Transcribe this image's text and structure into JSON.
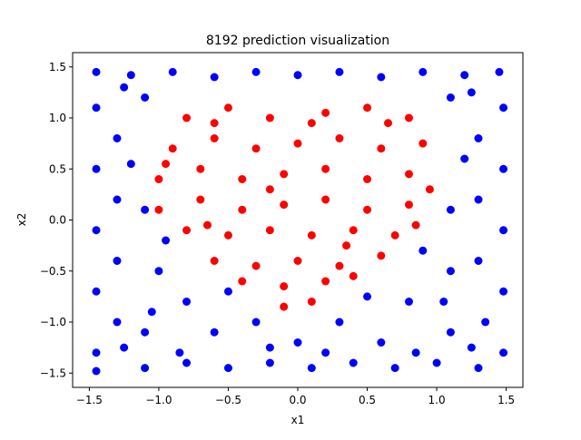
{
  "chart_data": {
    "type": "scatter",
    "title": "8192 prediction visualization",
    "xlabel": "x1",
    "ylabel": "x2",
    "xlim": [
      -1.62,
      1.62
    ],
    "ylim": [
      -1.64,
      1.64
    ],
    "xticks": [
      -1.5,
      -1.0,
      -0.5,
      0.0,
      0.5,
      1.0,
      1.5
    ],
    "xtick_labels": [
      "−1.5",
      "−1.0",
      "−0.5",
      "0.0",
      "0.5",
      "1.0",
      "1.5"
    ],
    "yticks": [
      -1.5,
      -1.0,
      -0.5,
      0.0,
      0.5,
      1.0,
      1.5
    ],
    "ytick_labels": [
      "−1.5",
      "−1.0",
      "−0.5",
      "0.0",
      "0.5",
      "1.0",
      "1.5"
    ],
    "grid": false,
    "legend": "none",
    "points_range": {
      "x": [
        -1.5,
        1.5
      ],
      "y": [
        -1.5,
        1.5
      ]
    },
    "series": [
      {
        "color": "#0000ff",
        "description_region": "outside the central cloud",
        "points": [
          [
            -1.45,
            1.45
          ],
          [
            -1.2,
            1.42
          ],
          [
            -0.9,
            1.45
          ],
          [
            -0.6,
            1.4
          ],
          [
            -0.3,
            1.45
          ],
          [
            0.0,
            1.42
          ],
          [
            0.3,
            1.45
          ],
          [
            0.6,
            1.4
          ],
          [
            0.9,
            1.45
          ],
          [
            1.2,
            1.42
          ],
          [
            1.45,
            1.45
          ],
          [
            -1.45,
            1.1
          ],
          [
            -1.3,
            0.8
          ],
          [
            -1.45,
            0.5
          ],
          [
            -1.3,
            0.2
          ],
          [
            -1.45,
            -0.1
          ],
          [
            -1.3,
            -0.4
          ],
          [
            -1.45,
            -0.7
          ],
          [
            -1.3,
            -1.0
          ],
          [
            -1.45,
            -1.3
          ],
          [
            -1.45,
            -1.48
          ],
          [
            -1.1,
            -1.45
          ],
          [
            -0.8,
            -1.4
          ],
          [
            -0.5,
            -1.45
          ],
          [
            -0.2,
            -1.4
          ],
          [
            0.1,
            -1.45
          ],
          [
            0.4,
            -1.4
          ],
          [
            0.7,
            -1.45
          ],
          [
            1.0,
            -1.4
          ],
          [
            1.3,
            -1.45
          ],
          [
            1.48,
            -1.3
          ],
          [
            1.35,
            -1.0
          ],
          [
            1.48,
            -0.7
          ],
          [
            1.3,
            -0.4
          ],
          [
            1.48,
            -0.1
          ],
          [
            1.3,
            0.2
          ],
          [
            1.48,
            0.5
          ],
          [
            1.3,
            0.8
          ],
          [
            1.48,
            1.1
          ],
          [
            1.1,
            1.2
          ],
          [
            -1.1,
            1.2
          ],
          [
            -1.1,
            -1.1
          ],
          [
            1.1,
            -1.1
          ],
          [
            -0.8,
            -0.8
          ],
          [
            0.8,
            -0.8
          ],
          [
            -1.0,
            -0.5
          ],
          [
            1.1,
            -0.5
          ],
          [
            1.1,
            0.1
          ],
          [
            -1.1,
            0.1
          ],
          [
            -0.3,
            -1.0
          ],
          [
            0.3,
            -1.0
          ],
          [
            0.0,
            -1.2
          ],
          [
            -0.6,
            -1.1
          ],
          [
            0.6,
            -1.2
          ],
          [
            0.5,
            -0.75
          ],
          [
            -0.5,
            -0.7
          ],
          [
            1.2,
            0.6
          ],
          [
            -1.2,
            0.55
          ],
          [
            0.9,
            -0.3
          ],
          [
            -0.95,
            -0.2
          ],
          [
            1.05,
            -0.8
          ],
          [
            -1.05,
            -0.9
          ],
          [
            0.2,
            -1.3
          ],
          [
            -0.2,
            -1.25
          ],
          [
            0.85,
            -1.3
          ],
          [
            -0.85,
            -1.3
          ],
          [
            1.25,
            -1.25
          ],
          [
            -1.25,
            -1.25
          ],
          [
            1.25,
            1.25
          ],
          [
            -1.25,
            1.3
          ]
        ]
      },
      {
        "color": "#ff0000",
        "description_region": "central cloud",
        "points": [
          [
            -0.8,
            1.0
          ],
          [
            -0.5,
            1.1
          ],
          [
            -0.2,
            1.0
          ],
          [
            0.2,
            1.05
          ],
          [
            0.5,
            1.1
          ],
          [
            0.8,
            1.0
          ],
          [
            -0.9,
            0.7
          ],
          [
            -0.6,
            0.8
          ],
          [
            -0.3,
            0.7
          ],
          [
            0.0,
            0.75
          ],
          [
            0.3,
            0.8
          ],
          [
            0.6,
            0.7
          ],
          [
            0.9,
            0.75
          ],
          [
            -1.0,
            0.4
          ],
          [
            -0.7,
            0.5
          ],
          [
            -0.4,
            0.4
          ],
          [
            -0.1,
            0.45
          ],
          [
            0.2,
            0.5
          ],
          [
            0.5,
            0.4
          ],
          [
            0.8,
            0.45
          ],
          [
            -1.0,
            0.1
          ],
          [
            -0.7,
            0.2
          ],
          [
            -0.4,
            0.1
          ],
          [
            -0.1,
            0.15
          ],
          [
            0.2,
            0.2
          ],
          [
            0.5,
            0.1
          ],
          [
            0.8,
            0.15
          ],
          [
            -0.8,
            -0.1
          ],
          [
            -0.5,
            -0.15
          ],
          [
            -0.2,
            -0.1
          ],
          [
            0.1,
            -0.15
          ],
          [
            0.4,
            -0.1
          ],
          [
            0.7,
            -0.15
          ],
          [
            -0.6,
            -0.4
          ],
          [
            -0.3,
            -0.45
          ],
          [
            0.0,
            -0.4
          ],
          [
            0.3,
            -0.45
          ],
          [
            0.6,
            -0.35
          ],
          [
            -0.4,
            -0.6
          ],
          [
            -0.1,
            -0.65
          ],
          [
            0.2,
            -0.6
          ],
          [
            0.4,
            -0.55
          ],
          [
            -0.1,
            -0.85
          ],
          [
            0.1,
            -0.8
          ],
          [
            -0.95,
            0.55
          ],
          [
            0.95,
            0.3
          ],
          [
            -0.6,
            0.95
          ],
          [
            0.65,
            0.95
          ],
          [
            0.1,
            0.95
          ],
          [
            -0.2,
            0.3
          ],
          [
            0.35,
            -0.25
          ],
          [
            -0.65,
            -0.05
          ],
          [
            0.85,
            -0.05
          ]
        ]
      }
    ]
  }
}
